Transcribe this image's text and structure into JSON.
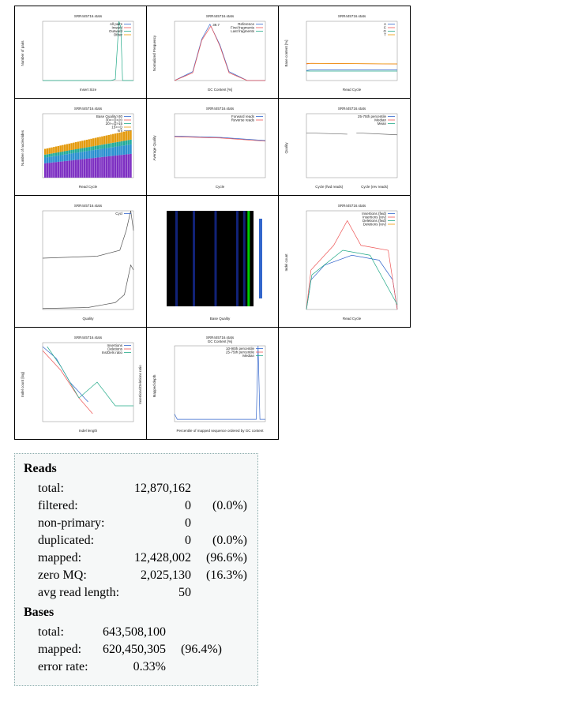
{
  "thumbnails": [
    {
      "title": "SRR445716.stats",
      "xlabel": "Insert Size",
      "ylabel": "Number of pairs",
      "legend": [
        "All pairs",
        "Inward",
        "Outward",
        "Other"
      ]
    },
    {
      "title": "SRR445716.stats",
      "xlabel": "GC Content [%]",
      "ylabel": "Normalized Frequency",
      "legend": [
        "Reference",
        "First fragments",
        "Last fragments"
      ],
      "annotation": "39.7"
    },
    {
      "title": "SRR445716.stats",
      "xlabel": "Read Cycle",
      "ylabel": "Base content [%]",
      "legend": [
        "A",
        "C",
        "G",
        "T"
      ]
    },
    {
      "title": "SRR445716.stats",
      "xlabel": "Read Cycle",
      "ylabel": "Number of nucleotides",
      "legend": [
        "Base Quality>30",
        "30>=Q>20",
        "20>=Q>15",
        "15>=Q",
        "N's"
      ]
    },
    {
      "title": "SRR445716.stats",
      "xlabel": "Cycle",
      "ylabel": "Average Quality",
      "legend": [
        "Forward reads",
        "Reverse reads"
      ]
    },
    {
      "title": "SRR445716.stats",
      "xlabel": "Cycle (fwd reads)",
      "xlabel2": "Cycle (rev reads)",
      "ylabel": "Quality",
      "legend": [
        "25-75th percentile",
        "Median",
        "Mean"
      ]
    },
    {
      "title": "SRR445716.stats",
      "xlabel": "Quality",
      "legend": [
        "Cycl"
      ]
    },
    {
      "xlabel": "Base Quality"
    },
    {
      "title": "SRR445716.stats",
      "xlabel": "Read Cycle",
      "ylabel": "Indel count",
      "legend": [
        "Insertions (fwd)",
        "Insertions (rev)",
        "Deletions (fwd)",
        "Deletions (rev)"
      ]
    },
    {
      "title": "SRR445716.stats",
      "xlabel": "Indel length",
      "ylabel": "Indel count [log]",
      "ylabel2": "Insertions/Deletions ratio",
      "legend": [
        "Insertions",
        "Deletions",
        "Ins/Dels ratio"
      ]
    },
    {
      "title": "SRR445716.stats",
      "subtitle": "GC Content [%]",
      "xlabel": "Percentile of mapped sequence ordered by GC content",
      "ylabel": "Mapped depth",
      "legend": [
        "10-90th percentile",
        "25-75th percentile",
        "Median"
      ]
    }
  ],
  "reads": {
    "heading": "Reads",
    "rows": [
      [
        "total:",
        "12,870,162",
        ""
      ],
      [
        "filtered:",
        "0",
        "(0.0%)"
      ],
      [
        "non-primary:",
        "0",
        ""
      ],
      [
        "duplicated:",
        "0",
        "(0.0%)"
      ],
      [
        "mapped:",
        "12,428,002",
        "(96.6%)"
      ],
      [
        "zero MQ:",
        "2,025,130",
        "(16.3%)"
      ],
      [
        "avg read length:",
        "50",
        ""
      ]
    ]
  },
  "bases": {
    "heading": "Bases",
    "rows": [
      [
        "total:",
        "643,508,100",
        ""
      ],
      [
        "mapped:",
        "620,450,305",
        "(96.4%)"
      ],
      [
        "error rate:",
        "0.33%",
        ""
      ]
    ]
  }
}
